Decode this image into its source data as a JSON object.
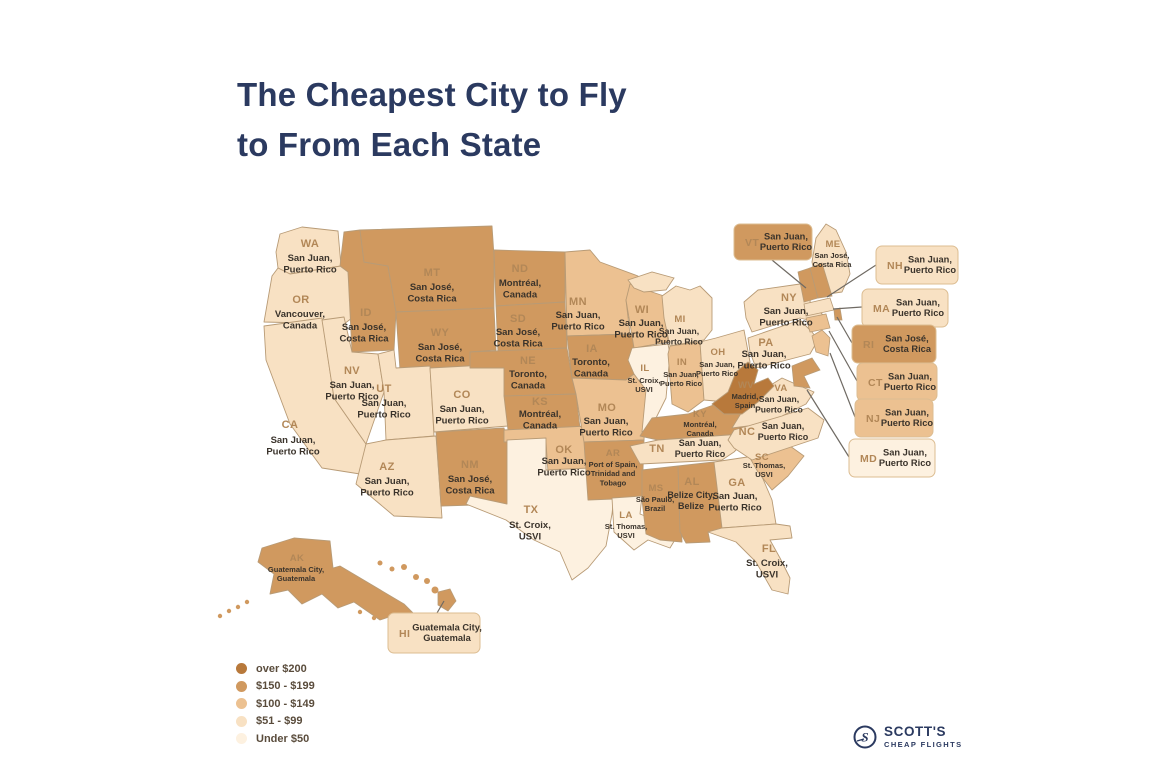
{
  "title": {
    "line1": "The Cheapest City to Fly",
    "line2": "to From Each State"
  },
  "palette": {
    "tier1": "#b8793b",
    "tier2": "#d0995f",
    "tier3": "#ecc191",
    "tier4": "#f8e1c3",
    "tier5": "#fdf1e0",
    "border": "#b89b76",
    "code_text": "#b28757",
    "dest_text": "#3a332b",
    "title_text": "#2b3a60",
    "callout_line": "#6f6a63"
  },
  "legend": {
    "items": [
      {
        "label": "over $200",
        "tier": 1
      },
      {
        "label": "$150 - $199",
        "tier": 2
      },
      {
        "label": "$100 - $149",
        "tier": 3
      },
      {
        "label": "$51 - $99",
        "tier": 4
      },
      {
        "label": "Under $50",
        "tier": 5
      }
    ]
  },
  "logo": {
    "name": "SCOTT'S",
    "tagline": "CHEAP FLIGHTS"
  },
  "map": {
    "states": [
      {
        "code": "WA",
        "tier": 4,
        "lines": [
          "San Juan,",
          "Puerto Rico"
        ]
      },
      {
        "code": "OR",
        "tier": 4,
        "lines": [
          "Vancouver,",
          "Canada"
        ]
      },
      {
        "code": "CA",
        "tier": 4,
        "lines": [
          "San Juan,",
          "Puerto Rico"
        ]
      },
      {
        "code": "NV",
        "tier": 4,
        "lines": [
          "San Juan,",
          "Puerto Rico"
        ]
      },
      {
        "code": "ID",
        "tier": 2,
        "lines": [
          "San José,",
          "Costa Rica"
        ]
      },
      {
        "code": "MT",
        "tier": 2,
        "lines": [
          "San José,",
          "Costa Rica"
        ]
      },
      {
        "code": "WY",
        "tier": 2,
        "lines": [
          "San José,",
          "Costa Rica"
        ]
      },
      {
        "code": "UT",
        "tier": 4,
        "lines": [
          "San Juan,",
          "Puerto Rico"
        ]
      },
      {
        "code": "CO",
        "tier": 4,
        "lines": [
          "San Juan,",
          "Puerto Rico"
        ]
      },
      {
        "code": "AZ",
        "tier": 4,
        "lines": [
          "San Juan,",
          "Puerto Rico"
        ]
      },
      {
        "code": "NM",
        "tier": 2,
        "lines": [
          "San José,",
          "Costa Rica"
        ]
      },
      {
        "code": "ND",
        "tier": 2,
        "lines": [
          "Montréal,",
          "Canada"
        ]
      },
      {
        "code": "SD",
        "tier": 2,
        "lines": [
          "San José,",
          "Costa Rica"
        ]
      },
      {
        "code": "NE",
        "tier": 2,
        "lines": [
          "Toronto,",
          "Canada"
        ]
      },
      {
        "code": "KS",
        "tier": 2,
        "lines": [
          "Montréal,",
          "Canada"
        ]
      },
      {
        "code": "OK",
        "tier": 3,
        "lines": [
          "San Juan,",
          "Puerto Rico"
        ]
      },
      {
        "code": "TX",
        "tier": 5,
        "lines": [
          "St. Croix,",
          "USVI"
        ]
      },
      {
        "code": "MN",
        "tier": 3,
        "lines": [
          "San Juan,",
          "Puerto Rico"
        ]
      },
      {
        "code": "IA",
        "tier": 2,
        "lines": [
          "Toronto,",
          "Canada"
        ]
      },
      {
        "code": "MO",
        "tier": 3,
        "lines": [
          "San Juan,",
          "Puerto Rico"
        ]
      },
      {
        "code": "AR",
        "tier": 2,
        "lines": [
          "Port of Spain,",
          "Trinidad and",
          "Tobago"
        ]
      },
      {
        "code": "LA",
        "tier": 5,
        "lines": [
          "St. Thomas,",
          "USVI"
        ]
      },
      {
        "code": "WI",
        "tier": 3,
        "lines": [
          "San Juan,",
          "Puerto Rico"
        ]
      },
      {
        "code": "IL",
        "tier": 5,
        "lines": [
          "St. Croix,",
          "USVI"
        ]
      },
      {
        "code": "MI",
        "tier": 4,
        "lines": [
          "San Juan,",
          "Puerto Rico"
        ]
      },
      {
        "code": "IN",
        "tier": 3,
        "lines": [
          "San Juan,",
          "Puerto Rico"
        ]
      },
      {
        "code": "OH",
        "tier": 4,
        "lines": [
          "San Juan,",
          "Puerto Rico"
        ]
      },
      {
        "code": "KY",
        "tier": 2,
        "lines": [
          "Montréal,",
          "Canada"
        ]
      },
      {
        "code": "TN",
        "tier": 4,
        "lines": [
          "San Juan,",
          "Puerto Rico"
        ]
      },
      {
        "code": "MS",
        "tier": 2,
        "lines": [
          "São Paulo,",
          "Brazil"
        ]
      },
      {
        "code": "AL",
        "tier": 2,
        "lines": [
          "Belize City,",
          "Belize"
        ]
      },
      {
        "code": "GA",
        "tier": 4,
        "lines": [
          "San Juan,",
          "Puerto Rico"
        ]
      },
      {
        "code": "FL",
        "tier": 4,
        "lines": [
          "St. Croix,",
          "USVI"
        ]
      },
      {
        "code": "SC",
        "tier": 3,
        "lines": [
          "St. Thomas,",
          "USVI"
        ]
      },
      {
        "code": "NC",
        "tier": 4,
        "lines": [
          "San Juan,",
          "Puerto Rico"
        ]
      },
      {
        "code": "VA",
        "tier": 4,
        "lines": [
          "San Juan,",
          "Puerto Rico"
        ]
      },
      {
        "code": "WV",
        "tier": 1,
        "lines": [
          "Madrid,",
          "Spain"
        ]
      },
      {
        "code": "PA",
        "tier": 4,
        "lines": [
          "San Juan,",
          "Puerto Rico"
        ]
      },
      {
        "code": "NY",
        "tier": 4,
        "lines": [
          "San Juan,",
          "Puerto Rico"
        ]
      },
      {
        "code": "ME",
        "tier": 4,
        "lines": [
          "San José,",
          "Costa Rica"
        ]
      },
      {
        "code": "AK",
        "tier": 2,
        "lines": [
          "Guatemala City,",
          "Guatemala"
        ]
      },
      {
        "code": "VT",
        "tier": 2,
        "lines": [
          "San Juan,",
          "Puerto Rico"
        ]
      },
      {
        "code": "NH",
        "tier": 4,
        "lines": [
          "San Juan,",
          "Puerto Rico"
        ]
      },
      {
        "code": "MA",
        "tier": 4,
        "lines": [
          "San Juan,",
          "Puerto Rico"
        ]
      },
      {
        "code": "RI",
        "tier": 2,
        "lines": [
          "San José,",
          "Costa Rica"
        ]
      },
      {
        "code": "CT",
        "tier": 3,
        "lines": [
          "San Juan,",
          "Puerto Rico"
        ]
      },
      {
        "code": "NJ",
        "tier": 3,
        "lines": [
          "San Juan,",
          "Puerto Rico"
        ]
      },
      {
        "code": "MD",
        "tier": 5,
        "lines": [
          "San Juan,",
          "Puerto Rico"
        ]
      },
      {
        "code": "HI",
        "tier": 4,
        "lines": [
          "Guatemala City,",
          "Guatemala"
        ]
      }
    ]
  }
}
